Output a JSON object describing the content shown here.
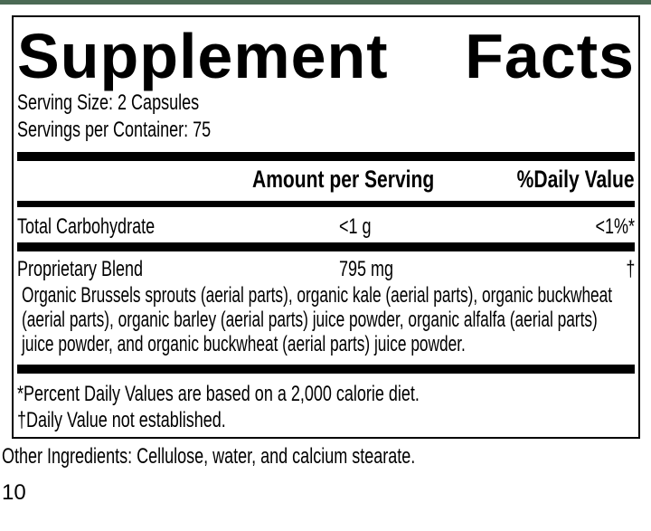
{
  "page": {
    "accent_bar_color": "#4b6a55",
    "page_number": "10"
  },
  "label": {
    "title": {
      "word1": "Supplement",
      "word2": "Facts"
    },
    "serving_size": "Serving Size: 2 Capsules",
    "servings_per_container": "Servings per Container: 75",
    "columns": {
      "amount_header": "Amount per Serving",
      "daily_value_header": "%Daily Value"
    },
    "rows": [
      {
        "name": "Total Carbohydrate",
        "amount": "<1 g",
        "daily_value": "<1%*"
      },
      {
        "name": "Proprietary Blend",
        "amount": "795 mg",
        "daily_value": "†",
        "description": "Organic Brussels sprouts (aerial parts), organic kale (aerial parts), organic buckwheat (aerial parts), organic barley (aerial parts) juice powder, organic alfalfa (aerial parts) juice powder, and organic buckwheat (aerial parts) juice powder."
      }
    ],
    "footnotes": {
      "percent_dv": "*Percent Daily Values are based on a 2,000 calorie diet.",
      "dagger": "†Daily Value not established."
    },
    "other_ingredients": "Other Ingredients: Cellulose, water, and calcium stearate."
  }
}
